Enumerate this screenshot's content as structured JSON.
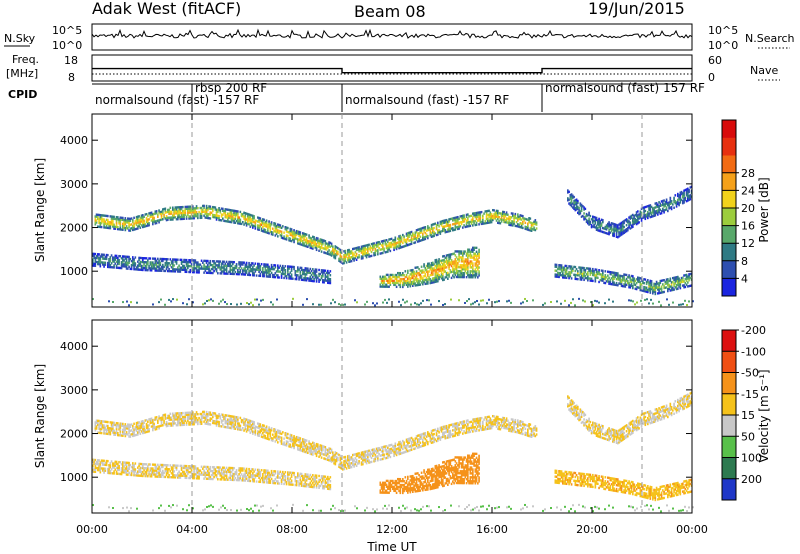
{
  "header": {
    "station": "Adak West (fitACF)",
    "beam": "Beam 08",
    "date": "19/Jun/2015"
  },
  "panels": {
    "nsky": {
      "label": "N.Sky",
      "right_label": "N.Search",
      "tick_top": "10^5",
      "tick_bottom": "10^0"
    },
    "freq": {
      "label_line1": "Freq.",
      "label_line2": "[MHz]",
      "right_label": "Nave",
      "left_ticks": [
        "18",
        "8"
      ],
      "right_ticks": [
        "60",
        "0"
      ],
      "left_range": [
        8,
        18
      ]
    },
    "cpid": {
      "label": "CPID",
      "segments": [
        {
          "start": 0,
          "end": 4,
          "text": "normalsound (fast) -157 RF",
          "row": 1
        },
        {
          "start": 4,
          "end": 10,
          "text": "rbsp 200 RF",
          "row": 0
        },
        {
          "start": 10,
          "end": 18,
          "text": "normalsound (fast) -157 RF",
          "row": 1
        },
        {
          "start": 18,
          "end": 22,
          "text": "normalsound (fast) 157 RF",
          "row": 0
        }
      ]
    }
  },
  "axes": {
    "time_ticks": [
      "00:00",
      "04:00",
      "08:00",
      "12:00",
      "16:00",
      "20:00",
      "00:00"
    ],
    "xlabel": "Time UT",
    "ylabel": "Slant Range [km]",
    "range_ticks": [
      "1000",
      "2000",
      "3000",
      "4000"
    ],
    "x_range_hours": [
      0,
      24
    ],
    "y_range_km": [
      180,
      4600
    ]
  },
  "colorbars": {
    "power": {
      "label": "Power [dB]",
      "ticks": [
        "4",
        "8",
        "12",
        "16",
        "20",
        "24",
        "28"
      ],
      "colors": [
        "#1b25e0",
        "#2e4fb0",
        "#2f7a84",
        "#58a86a",
        "#9ccd3d",
        "#f1d21b",
        "#f5a11a",
        "#f26b13",
        "#e7300f",
        "#d80b0b"
      ]
    },
    "velocity": {
      "label": "Velocity [m s⁻¹]",
      "ticks": [
        "200",
        "100",
        "50",
        "15",
        "-15",
        "-50",
        "-100",
        "-200"
      ],
      "colors": [
        "#1f37c8",
        "#2d7a50",
        "#58c04a",
        "#c8c8c8",
        "#f5c21b",
        "#f5921a",
        "#f04f13",
        "#dc1010"
      ]
    }
  },
  "chart_data": {
    "type": "heatmap",
    "title": "Adak West (fitACF)",
    "xlabel": "Time UT",
    "ylabel": "Slant Range [km]",
    "x_range": [
      0,
      24
    ],
    "y_range": [
      180,
      4600
    ],
    "dashed_time_markers": [
      4,
      10,
      22
    ],
    "frequency_mhz": [
      {
        "start": 0,
        "end": 10,
        "value": 12.8
      },
      {
        "start": 10,
        "end": 18,
        "value": 11.2
      },
      {
        "start": 18,
        "end": 24,
        "value": 12.8
      }
    ],
    "echo_bands": [
      {
        "name": "f-region",
        "points_h": [
          0.1,
          1.5,
          3,
          4.5,
          6,
          7.5,
          8.5,
          9.5,
          10,
          11,
          12,
          13,
          14,
          15,
          16,
          17,
          17.8
        ],
        "points_km": [
          2150,
          2050,
          2300,
          2350,
          2200,
          1900,
          1700,
          1500,
          1300,
          1450,
          1600,
          1800,
          2000,
          2150,
          2250,
          2150,
          2000
        ],
        "power_db": 20,
        "velocity": 0
      },
      {
        "name": "late f-region",
        "points_h": [
          19,
          20,
          21,
          22,
          23,
          24
        ],
        "points_km": [
          2700,
          2100,
          1900,
          2300,
          2500,
          2800
        ],
        "power_db": 10,
        "velocity": 0
      },
      {
        "name": "e-region dawn",
        "points_h": [
          0,
          2,
          4,
          6,
          8,
          9.5
        ],
        "points_km": [
          1250,
          1150,
          1100,
          1050,
          950,
          850
        ],
        "power_db": 10,
        "velocity": 0
      },
      {
        "name": "afternoon wedge",
        "points_h": [
          11.5,
          12.5,
          13.5,
          14.5,
          15.5
        ],
        "points_km": [
          750,
          800,
          950,
          1150,
          1200
        ],
        "power_db": 22,
        "velocity": -40
      },
      {
        "name": "evening near range",
        "points_h": [
          18.5,
          20,
          21.5,
          22.5,
          24
        ],
        "points_km": [
          1000,
          900,
          750,
          600,
          800
        ],
        "power_db": 14,
        "velocity": -10
      }
    ]
  }
}
